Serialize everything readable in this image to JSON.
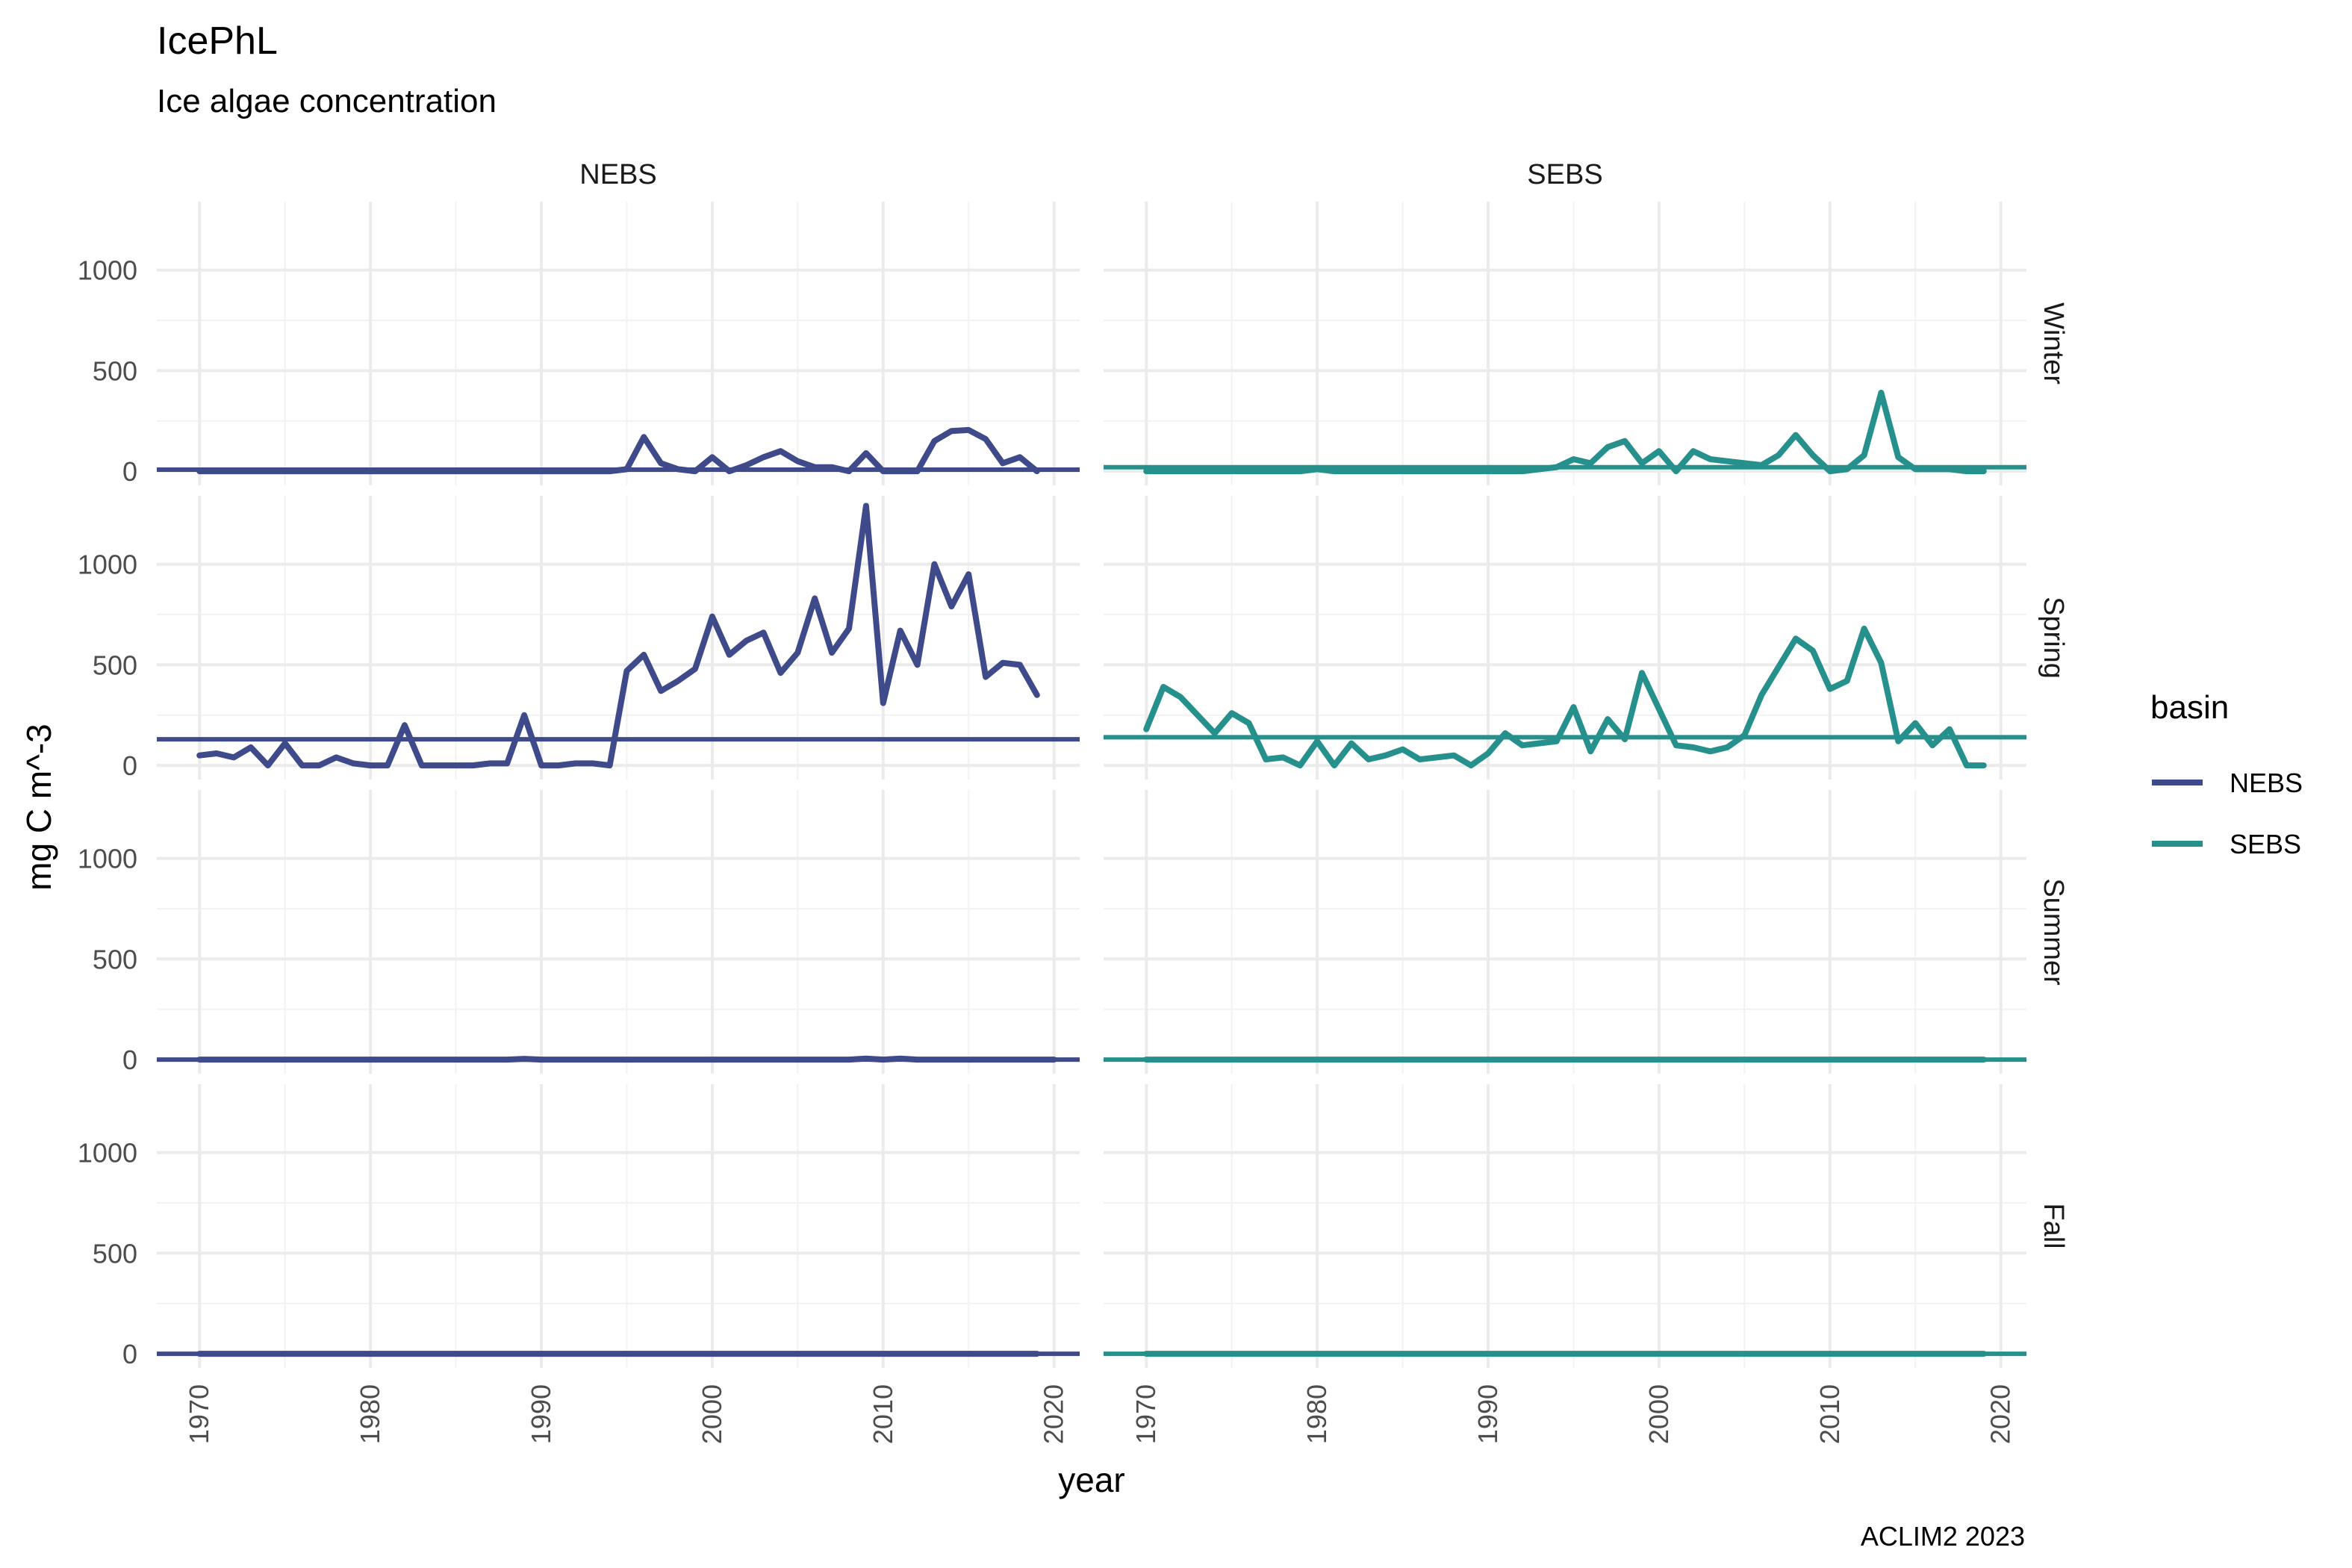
{
  "chart_data": {
    "type": "line",
    "title": "IcePhL",
    "subtitle": "Ice algae concentration",
    "xlabel": "year",
    "ylabel": "mg C m^-3",
    "caption": "ACLIM2 2023",
    "legend": {
      "title": "basin",
      "position": "right",
      "entries": [
        "NEBS",
        "SEBS"
      ]
    },
    "colors": {
      "NEBS": "#3e4a89",
      "SEBS": "#26908c"
    },
    "xlim": [
      1967.5,
      2021.5
    ],
    "ylim": [
      -70,
      1340
    ],
    "x_ticks": [
      1970,
      1980,
      1990,
      2000,
      2010,
      2020
    ],
    "x_tick_labels": [
      "1970",
      "1980",
      "1990",
      "2000",
      "2010",
      "2020"
    ],
    "y_ticks": [
      0,
      500,
      1000
    ],
    "y_tick_labels": [
      "0",
      "500",
      "1000"
    ],
    "grid": true,
    "columns": [
      "NEBS",
      "SEBS"
    ],
    "rows": [
      "Winter",
      "Spring",
      "Summer",
      "Fall"
    ],
    "panels": [
      {
        "basin": "NEBS",
        "season": "Winter",
        "mean": 8,
        "x": [
          1970,
          1971,
          1972,
          1973,
          1974,
          1975,
          1976,
          1977,
          1978,
          1979,
          1980,
          1981,
          1982,
          1983,
          1984,
          1985,
          1986,
          1987,
          1988,
          1989,
          1990,
          1991,
          1992,
          1993,
          1994,
          1995,
          1996,
          1997,
          1998,
          1999,
          2000,
          2001,
          2002,
          2003,
          2004,
          2005,
          2006,
          2007,
          2008,
          2009,
          2010,
          2011,
          2012,
          2013,
          2014,
          2015,
          2016,
          2017,
          2018,
          2019
        ],
        "y": [
          0,
          0,
          0,
          0,
          0,
          0,
          0,
          0,
          0,
          0,
          0,
          0,
          0,
          0,
          0,
          0,
          0,
          0,
          0,
          0,
          0,
          0,
          0,
          0,
          0,
          10,
          170,
          40,
          10,
          0,
          70,
          0,
          30,
          70,
          100,
          50,
          20,
          20,
          0,
          90,
          0,
          0,
          0,
          150,
          200,
          205,
          160,
          40,
          70,
          0
        ]
      },
      {
        "basin": "SEBS",
        "season": "Winter",
        "mean": 20,
        "x": [
          1970,
          1971,
          1972,
          1973,
          1974,
          1975,
          1976,
          1977,
          1978,
          1979,
          1980,
          1981,
          1982,
          1983,
          1984,
          1985,
          1986,
          1987,
          1988,
          1989,
          1990,
          1991,
          1992,
          1993,
          1994,
          1995,
          1996,
          1997,
          1998,
          1999,
          2000,
          2001,
          2002,
          2003,
          2004,
          2005,
          2006,
          2007,
          2008,
          2009,
          2010,
          2011,
          2012,
          2013,
          2014,
          2015,
          2016,
          2017,
          2018,
          2019
        ],
        "y": [
          0,
          0,
          0,
          0,
          0,
          0,
          0,
          0,
          0,
          0,
          10,
          0,
          0,
          0,
          0,
          0,
          0,
          0,
          0,
          0,
          0,
          0,
          0,
          10,
          20,
          60,
          40,
          120,
          150,
          40,
          100,
          0,
          100,
          60,
          50,
          40,
          30,
          80,
          180,
          80,
          0,
          10,
          80,
          390,
          70,
          10,
          10,
          10,
          0,
          0
        ]
      },
      {
        "basin": "NEBS",
        "season": "Spring",
        "mean": 130,
        "x": [
          1970,
          1971,
          1972,
          1973,
          1974,
          1975,
          1976,
          1977,
          1978,
          1979,
          1980,
          1981,
          1982,
          1983,
          1984,
          1985,
          1986,
          1987,
          1988,
          1989,
          1990,
          1991,
          1992,
          1993,
          1994,
          1995,
          1996,
          1997,
          1998,
          1999,
          2000,
          2001,
          2002,
          2003,
          2004,
          2005,
          2006,
          2007,
          2008,
          2009,
          2010,
          2011,
          2012,
          2013,
          2014,
          2015,
          2016,
          2017,
          2018,
          2019
        ],
        "y": [
          50,
          60,
          40,
          90,
          0,
          110,
          0,
          0,
          40,
          10,
          0,
          0,
          200,
          0,
          0,
          0,
          0,
          10,
          10,
          250,
          0,
          0,
          10,
          10,
          0,
          470,
          550,
          370,
          420,
          480,
          740,
          550,
          620,
          660,
          460,
          560,
          830,
          560,
          680,
          1290,
          310,
          670,
          500,
          1000,
          790,
          950,
          440,
          510,
          500,
          350
        ]
      },
      {
        "basin": "SEBS",
        "season": "Spring",
        "mean": 140,
        "x": [
          1970,
          1971,
          1972,
          1973,
          1974,
          1975,
          1976,
          1977,
          1978,
          1979,
          1980,
          1981,
          1982,
          1983,
          1984,
          1985,
          1986,
          1987,
          1988,
          1989,
          1990,
          1991,
          1992,
          1993,
          1994,
          1995,
          1996,
          1997,
          1998,
          1999,
          2000,
          2001,
          2002,
          2003,
          2004,
          2005,
          2006,
          2007,
          2008,
          2009,
          2010,
          2011,
          2012,
          2013,
          2014,
          2015,
          2016,
          2017,
          2018,
          2019
        ],
        "y": [
          180,
          390,
          340,
          250,
          160,
          260,
          210,
          30,
          40,
          0,
          120,
          0,
          110,
          30,
          50,
          80,
          30,
          40,
          50,
          0,
          60,
          160,
          100,
          110,
          120,
          290,
          70,
          230,
          130,
          460,
          280,
          100,
          90,
          70,
          90,
          150,
          350,
          490,
          630,
          570,
          380,
          420,
          680,
          510,
          120,
          210,
          100,
          180,
          0,
          0
        ]
      },
      {
        "basin": "NEBS",
        "season": "Summer",
        "mean": 0,
        "x": [
          1970,
          1980,
          1988,
          1989,
          1990,
          2000,
          2008,
          2009,
          2010,
          2011,
          2012,
          2020
        ],
        "y": [
          0,
          0,
          0,
          4,
          0,
          0,
          0,
          5,
          0,
          5,
          0,
          0
        ]
      },
      {
        "basin": "SEBS",
        "season": "Summer",
        "mean": 0,
        "x": [
          1970,
          2019
        ],
        "y": [
          0,
          0
        ]
      },
      {
        "basin": "NEBS",
        "season": "Fall",
        "mean": 0,
        "x": [
          1970,
          2019
        ],
        "y": [
          0,
          0
        ]
      },
      {
        "basin": "SEBS",
        "season": "Fall",
        "mean": 0,
        "x": [
          1970,
          2019
        ],
        "y": [
          0,
          0
        ]
      }
    ]
  }
}
